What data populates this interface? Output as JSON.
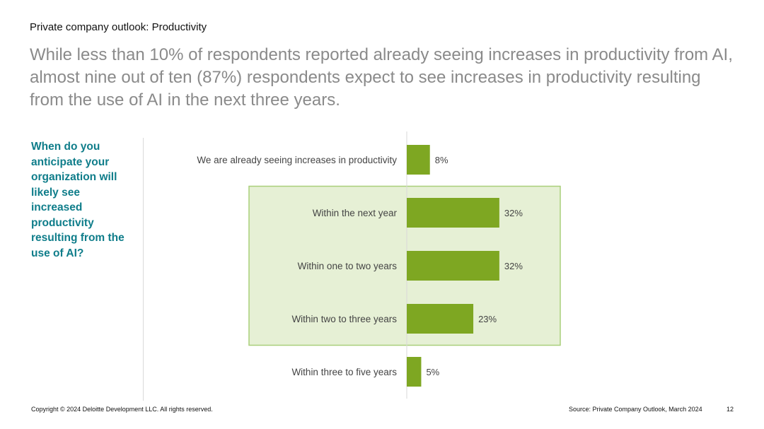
{
  "slide": {
    "kicker": "Private company outlook: Productivity",
    "headline": "While less than 10% of respondents reported already seeing increases in productivity from AI, almost nine out of ten (87%) respondents expect to see increases in productivity resulting from the use of AI in the next three years.",
    "question": "When do you anticipate your organization will likely see increased productivity resulting from the use of AI?"
  },
  "chart_data": {
    "type": "bar",
    "orientation": "horizontal",
    "categories": [
      "We are already seeing increases in productivity",
      "Within the next year",
      "Within one to two years",
      "Within two to three years",
      "Within three to five years"
    ],
    "values": [
      8,
      32,
      32,
      23,
      5
    ],
    "value_labels": [
      "8%",
      "32%",
      "32%",
      "23%",
      "5%"
    ],
    "unit": "%",
    "xlim": [
      0,
      100
    ],
    "highlight": {
      "from_category": 1,
      "to_category": 3
    },
    "colors": {
      "bar": "#7ea722",
      "highlight_fill": "#e6f0d5",
      "highlight_stroke": "#a9cf7a",
      "axis": "#d9d9d9"
    },
    "title": "",
    "xlabel": "",
    "ylabel": ""
  },
  "footer": {
    "copyright": "Copyright © 2024 Deloitte Development LLC. All rights reserved.",
    "source": "Source: Private Company Outlook, March 2024",
    "page": "12"
  }
}
